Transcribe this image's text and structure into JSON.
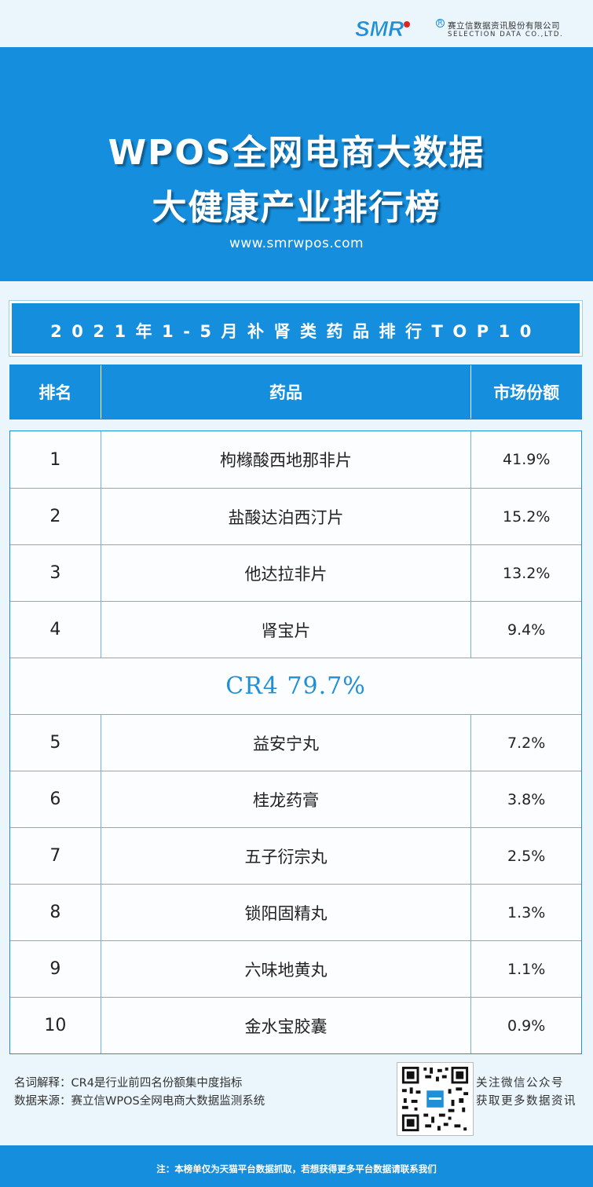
{
  "brand": {
    "logo_text": "SMR",
    "registered": "R",
    "company_cn": "赛立信数据资讯股份有限公司",
    "company_en": "SELECTION DATA CO.,LTD."
  },
  "banner": {
    "title_line1": "WPOS全网电商大数据",
    "title_line2": "大健康产业排行榜",
    "url": "www.smrwpos.com"
  },
  "subtitle": "2021年1-5月补肾类药品排行TOP10",
  "table": {
    "headers": [
      "排名",
      "药品",
      "市场份额"
    ],
    "top_rows": [
      {
        "rank": "1",
        "name": "枸橼酸西地那非片",
        "share": "41.9%"
      },
      {
        "rank": "2",
        "name": "盐酸达泊西汀片",
        "share": "15.2%"
      },
      {
        "rank": "3",
        "name": "他达拉非片",
        "share": "13.2%"
      },
      {
        "rank": "4",
        "name": "肾宝片",
        "share": "9.4%"
      }
    ],
    "cr4": "CR4  79.7%",
    "rest_rows": [
      {
        "rank": "5",
        "name": "益安宁丸",
        "share": "7.2%"
      },
      {
        "rank": "6",
        "name": "桂龙药膏",
        "share": "3.8%"
      },
      {
        "rank": "7",
        "name": "五子衍宗丸",
        "share": "2.5%"
      },
      {
        "rank": "8",
        "name": "锁阳固精丸",
        "share": "1.3%"
      },
      {
        "rank": "9",
        "name": "六味地黄丸",
        "share": "1.1%"
      },
      {
        "rank": "10",
        "name": "金水宝胶囊",
        "share": "0.9%"
      }
    ]
  },
  "footer": {
    "note1": "名词解释：CR4是行业前四名份额集中度指标",
    "note2": "数据来源：赛立信WPOS全网电商大数据监测系统",
    "qr_text1": "关注微信公众号",
    "qr_text2": "获取更多数据资讯",
    "bottom_note": "注：本榜单仅为天猫平台数据抓取，若想获得更多平台数据请联系我们"
  },
  "colors": {
    "primary": "#168ede",
    "background": "#eaf5fc",
    "cr4_text": "#1f8fd8"
  }
}
